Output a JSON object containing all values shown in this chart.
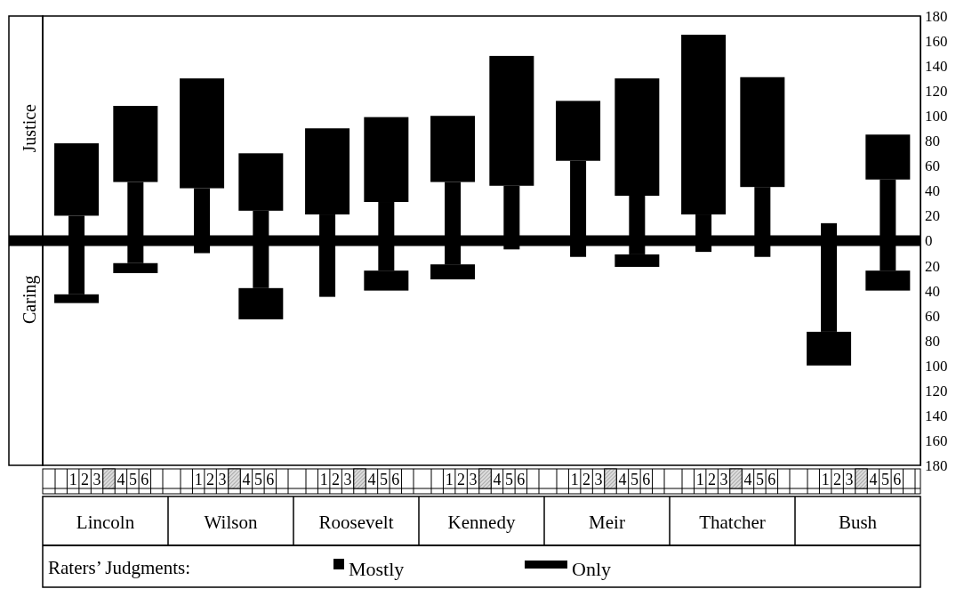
{
  "chart_data": {
    "type": "bar",
    "categories": [
      "Lincoln",
      "Wilson",
      "Roosevelt",
      "Kennedy",
      "Meir",
      "Thatcher",
      "Bush"
    ],
    "series": [
      {
        "name": "Mostly",
        "color": "#000000",
        "base": [
          -43,
          -10,
          -45,
          -19,
          -13,
          -9,
          -73
        ],
        "values": [
          63,
          52,
          66,
          66,
          77,
          30,
          87
        ]
      },
      {
        "name": "Only",
        "color": "#000000",
        "base": [
          20,
          42,
          21,
          47,
          64,
          21,
          null
        ],
        "values": [
          58,
          88,
          69,
          53,
          48,
          144,
          null
        ]
      },
      {
        "color": "#000000",
        "base": [
          -50,
          null,
          null,
          -31,
          null,
          null,
          -100
        ],
        "values": [
          7,
          null,
          null,
          12,
          null,
          null,
          27
        ]
      },
      {
        "color": "#000000",
        "base": [
          -18,
          -38,
          -24,
          -7,
          -11,
          -13,
          -24
        ],
        "values": [
          65,
          62,
          55,
          51,
          47,
          56,
          73
        ]
      },
      {
        "color": "#000000",
        "base": [
          47,
          24,
          31,
          44,
          36,
          43,
          49
        ],
        "values": [
          61,
          46,
          68,
          104,
          94,
          88,
          36
        ]
      },
      {
        "color": "#000000",
        "base": [
          -26,
          -63,
          -40,
          null,
          -21,
          null,
          -40
        ],
        "values": [
          8,
          25,
          16,
          null,
          10,
          null,
          16
        ]
      }
    ],
    "ylim": [
      -180,
      180
    ],
    "yticks": [
      {
        "value": -180,
        "label": "180"
      },
      {
        "value": -160,
        "label": "160"
      },
      {
        "value": -140,
        "label": "140"
      },
      {
        "value": -120,
        "label": "120"
      },
      {
        "value": -100,
        "label": "100"
      },
      {
        "value": -80,
        "label": "80"
      },
      {
        "value": -60,
        "label": "60"
      },
      {
        "value": -40,
        "label": "40"
      },
      {
        "value": -20,
        "label": "20"
      },
      0,
      20,
      40,
      60,
      80,
      100,
      120,
      140,
      160,
      180
    ],
    "ref_lines": [
      {
        "axis": "y",
        "value": 0,
        "color": "#000000"
      }
    ],
    "legend": "bottom",
    "legend_title": "Raters’ Judgments:",
    "grid": false,
    "annotations": [
      "Justice",
      "Caring",
      "1",
      "2",
      "3",
      "4",
      "5",
      "6",
      "1",
      "2",
      "3",
      "4",
      "5",
      "6",
      "1",
      "2",
      "3",
      "4",
      "5",
      "6",
      "1",
      "2",
      "3",
      "4",
      "5",
      "6",
      "1",
      "2",
      "3",
      "4",
      "5",
      "6",
      "1",
      "2",
      "3",
      "4",
      "5",
      "6",
      "1",
      "2",
      "3",
      "4",
      "5",
      "6"
    ]
  }
}
